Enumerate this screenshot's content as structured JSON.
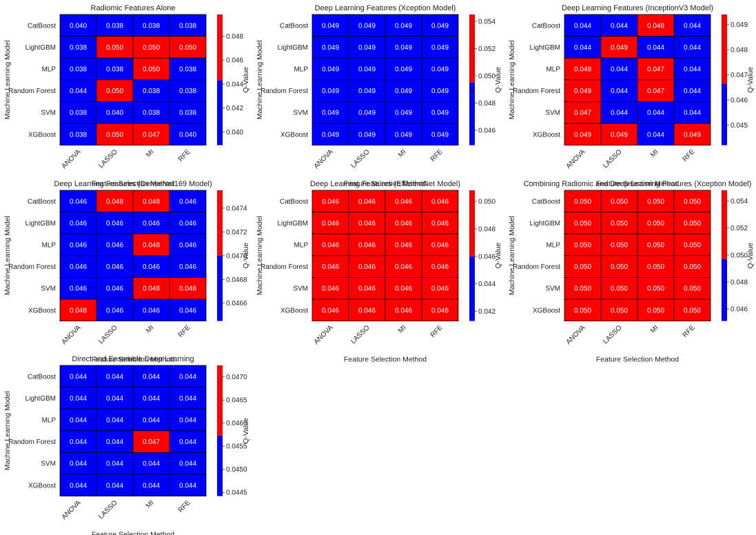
{
  "colors": {
    "low": "#0000ff",
    "high": "#ff0000",
    "grid": "#000000"
  },
  "chart_data": [
    {
      "type": "heatmap",
      "title": "Radiomic Features Alone",
      "xlabel": "Feature Selection Method",
      "ylabel": "Machine Learning Model",
      "x_categories": [
        "ANOVA",
        "LASSO",
        "MI",
        "RFE"
      ],
      "y_categories": [
        "CatBoost",
        "LightGBM",
        "MLP",
        "Random Forest",
        "SVM",
        "XGBoost"
      ],
      "values": [
        [
          0.04,
          0.038,
          0.038,
          0.038
        ],
        [
          0.038,
          0.05,
          0.05,
          0.05
        ],
        [
          0.038,
          0.038,
          0.05,
          0.038
        ],
        [
          0.044,
          0.05,
          0.038,
          0.038
        ],
        [
          0.038,
          0.04,
          0.038,
          0.038
        ],
        [
          0.038,
          0.05,
          0.047,
          0.04
        ]
      ],
      "labels": [
        [
          "0.040",
          "0.038",
          "0.038",
          "0.038"
        ],
        [
          "0.038",
          "0.050",
          "0.050",
          "0.050"
        ],
        [
          "0.038",
          "0.038",
          "0.050",
          "0.038"
        ],
        [
          "0.044",
          "0.050",
          "0.038",
          "0.038"
        ],
        [
          "0.038",
          "0.040",
          "0.038",
          "0.038"
        ],
        [
          "0.038",
          "0.050",
          "0.047",
          "0.040"
        ]
      ],
      "colorbar": {
        "label": "Q-Value",
        "vmin": 0.0389,
        "vmax": 0.0498,
        "threshold": 0.0443,
        "ticks": [
          "0.040",
          "0.042",
          "0.044",
          "0.046",
          "0.048"
        ]
      }
    },
    {
      "type": "heatmap",
      "title": "Deep Learning Features (Xception Model)",
      "xlabel": "Feature Selection Method",
      "ylabel": "Machine Learning Model",
      "x_categories": [
        "ANOVA",
        "LASSO",
        "MI",
        "RFE"
      ],
      "y_categories": [
        "CatBoost",
        "LightGBM",
        "MLP",
        "Random Forest",
        "SVM",
        "XGBoost"
      ],
      "values": [
        [
          0.049,
          0.049,
          0.049,
          0.049
        ],
        [
          0.049,
          0.049,
          0.049,
          0.049
        ],
        [
          0.049,
          0.049,
          0.049,
          0.049
        ],
        [
          0.049,
          0.049,
          0.049,
          0.049
        ],
        [
          0.049,
          0.049,
          0.049,
          0.049
        ],
        [
          0.049,
          0.049,
          0.049,
          0.049
        ]
      ],
      "labels": [
        [
          "0.049",
          "0.049",
          "0.049",
          "0.049"
        ],
        [
          "0.049",
          "0.049",
          "0.049",
          "0.049"
        ],
        [
          "0.049",
          "0.049",
          "0.049",
          "0.049"
        ],
        [
          "0.049",
          "0.049",
          "0.049",
          "0.049"
        ],
        [
          "0.049",
          "0.049",
          "0.049",
          "0.049"
        ],
        [
          "0.049",
          "0.049",
          "0.049",
          "0.049"
        ]
      ],
      "colorbar": {
        "label": "Q-Value",
        "vmin": 0.0449,
        "vmax": 0.0545,
        "threshold": 0.0495,
        "ticks": [
          "0.046",
          "0.048",
          "0.050",
          "0.052",
          "0.054"
        ]
      }
    },
    {
      "type": "heatmap",
      "title": "Deep Learning Features (InceptionV3 Model)",
      "xlabel": "Feature Selection Method",
      "ylabel": "Machine Learning Model",
      "x_categories": [
        "ANOVA",
        "LASSO",
        "MI",
        "RFE"
      ],
      "y_categories": [
        "CatBoost",
        "LightGBM",
        "MLP",
        "Random Forest",
        "SVM",
        "XGBoost"
      ],
      "values": [
        [
          0.044,
          0.044,
          0.048,
          0.044
        ],
        [
          0.044,
          0.049,
          0.044,
          0.044
        ],
        [
          0.048,
          0.044,
          0.047,
          0.044
        ],
        [
          0.049,
          0.044,
          0.047,
          0.044
        ],
        [
          0.047,
          0.044,
          0.044,
          0.044
        ],
        [
          0.049,
          0.049,
          0.044,
          0.049
        ]
      ],
      "labels": [
        [
          "0.044",
          "0.044",
          "0.048",
          "0.044"
        ],
        [
          "0.044",
          "0.049",
          "0.044",
          "0.044"
        ],
        [
          "0.048",
          "0.044",
          "0.047",
          "0.044"
        ],
        [
          "0.049",
          "0.044",
          "0.047",
          "0.044"
        ],
        [
          "0.047",
          "0.044",
          "0.044",
          "0.044"
        ],
        [
          "0.049",
          "0.049",
          "0.044",
          "0.049"
        ]
      ],
      "colorbar": {
        "label": "Q-Value",
        "vmin": 0.0442,
        "vmax": 0.0494,
        "threshold": 0.04665,
        "ticks": [
          "0.045",
          "0.046",
          "0.047",
          "0.048",
          "0.049"
        ]
      }
    },
    {
      "type": "heatmap",
      "title": "Deep Learning Features (DenseNet169 Model)",
      "xlabel": "Feature Selection Method",
      "ylabel": "Machine Learning Model",
      "x_categories": [
        "ANOVA",
        "LASSO",
        "MI",
        "RFE"
      ],
      "y_categories": [
        "CatBoost",
        "LightGBM",
        "MLP",
        "Random Forest",
        "SVM",
        "XGBoost"
      ],
      "values": [
        [
          0.046,
          0.048,
          0.048,
          0.046
        ],
        [
          0.046,
          0.046,
          0.046,
          0.046
        ],
        [
          0.046,
          0.046,
          0.048,
          0.046
        ],
        [
          0.046,
          0.046,
          0.046,
          0.046
        ],
        [
          0.046,
          0.046,
          0.048,
          0.048
        ],
        [
          0.048,
          0.046,
          0.046,
          0.046
        ]
      ],
      "labels": [
        [
          "0.046",
          "0.048",
          "0.048",
          "0.046"
        ],
        [
          "0.046",
          "0.046",
          "0.046",
          "0.046"
        ],
        [
          "0.046",
          "0.046",
          "0.048",
          "0.046"
        ],
        [
          "0.046",
          "0.046",
          "0.046",
          "0.046"
        ],
        [
          "0.046",
          "0.046",
          "0.048",
          "0.048"
        ],
        [
          "0.048",
          "0.046",
          "0.046",
          "0.046"
        ]
      ],
      "colorbar": {
        "label": "Q-Value",
        "vmin": 0.04645,
        "vmax": 0.04755,
        "threshold": 0.047,
        "ticks": [
          "0.0466",
          "0.0468",
          "0.0470",
          "0.0472",
          "0.0474"
        ]
      }
    },
    {
      "type": "heatmap",
      "title": "Deep Learning Features (EfficientNet Model)",
      "xlabel": "Feature Selection Method",
      "ylabel": "Machine Learning Model",
      "x_categories": [
        "ANOVA",
        "LASSO",
        "MI",
        "RFE"
      ],
      "y_categories": [
        "CatBoost",
        "LightGBM",
        "MLP",
        "Random Forest",
        "SVM",
        "XGBoost"
      ],
      "values": [
        [
          0.046,
          0.046,
          0.046,
          0.046
        ],
        [
          0.046,
          0.046,
          0.046,
          0.046
        ],
        [
          0.046,
          0.046,
          0.046,
          0.046
        ],
        [
          0.046,
          0.046,
          0.046,
          0.046
        ],
        [
          0.046,
          0.046,
          0.046,
          0.046
        ],
        [
          0.046,
          0.046,
          0.046,
          0.046
        ]
      ],
      "labels": [
        [
          "0.046",
          "0.046",
          "0.046",
          "0.046"
        ],
        [
          "0.046",
          "0.046",
          "0.046",
          "0.046"
        ],
        [
          "0.046",
          "0.046",
          "0.046",
          "0.046"
        ],
        [
          "0.046",
          "0.046",
          "0.046",
          "0.046"
        ],
        [
          "0.046",
          "0.046",
          "0.046",
          "0.046"
        ],
        [
          "0.046",
          "0.046",
          "0.046",
          "0.046"
        ]
      ],
      "colorbar": {
        "label": "Q-Value",
        "vmin": 0.0413,
        "vmax": 0.0508,
        "threshold": 0.046,
        "ticks": [
          "0.042",
          "0.044",
          "0.046",
          "0.048",
          "0.050"
        ]
      }
    },
    {
      "type": "heatmap",
      "title": "Combining Radiomic and Deep Learning Features (Xception Model)",
      "xlabel": "Feature Selection Method",
      "ylabel": "Machine Learning Model",
      "x_categories": [
        "ANOVA",
        "LASSO",
        "MI",
        "RFE"
      ],
      "y_categories": [
        "CatBoost",
        "LightGBM",
        "MLP",
        "Random Forest",
        "SVM",
        "XGBoost"
      ],
      "values": [
        [
          0.05,
          0.05,
          0.05,
          0.05
        ],
        [
          0.05,
          0.05,
          0.05,
          0.05
        ],
        [
          0.05,
          0.05,
          0.05,
          0.05
        ],
        [
          0.05,
          0.05,
          0.05,
          0.05
        ],
        [
          0.05,
          0.05,
          0.05,
          0.05
        ],
        [
          0.05,
          0.05,
          0.05,
          0.05
        ]
      ],
      "labels": [
        [
          "0.050",
          "0.050",
          "0.050",
          "0.050"
        ],
        [
          "0.050",
          "0.050",
          "0.050",
          "0.050"
        ],
        [
          "0.050",
          "0.050",
          "0.050",
          "0.050"
        ],
        [
          "0.050",
          "0.050",
          "0.050",
          "0.050"
        ],
        [
          "0.050",
          "0.050",
          "0.050",
          "0.050"
        ],
        [
          "0.050",
          "0.050",
          "0.050",
          "0.050"
        ]
      ],
      "colorbar": {
        "label": "Q-Value",
        "vmin": 0.0451,
        "vmax": 0.0548,
        "threshold": 0.0497,
        "ticks": [
          "0.046",
          "0.048",
          "0.050",
          "0.052",
          "0.054"
        ]
      }
    },
    {
      "type": "heatmap",
      "title": "Direct and Ensemble Deep Learning",
      "xlabel": "Feature Selection Method",
      "ylabel": "Machine Learning Model",
      "x_categories": [
        "ANOVA",
        "LASSO",
        "MI",
        "RFE"
      ],
      "y_categories": [
        "CatBoost",
        "LightGBM",
        "MLP",
        "Random Forest",
        "SVM",
        "XGBoost"
      ],
      "values": [
        [
          0.044,
          0.044,
          0.044,
          0.044
        ],
        [
          0.044,
          0.044,
          0.044,
          0.044
        ],
        [
          0.044,
          0.044,
          0.044,
          0.044
        ],
        [
          0.044,
          0.044,
          0.047,
          0.044
        ],
        [
          0.044,
          0.044,
          0.044,
          0.044
        ],
        [
          0.044,
          0.044,
          0.044,
          0.044
        ]
      ],
      "labels": [
        [
          "0.044",
          "0.044",
          "0.044",
          "0.044"
        ],
        [
          "0.044",
          "0.044",
          "0.044",
          "0.044"
        ],
        [
          "0.044",
          "0.044",
          "0.044",
          "0.044"
        ],
        [
          "0.044",
          "0.044",
          "0.047",
          "0.044"
        ],
        [
          "0.044",
          "0.044",
          "0.044",
          "0.044"
        ],
        [
          "0.044",
          "0.044",
          "0.044",
          "0.044"
        ]
      ],
      "colorbar": {
        "label": "Q-Value",
        "vmin": 0.04442,
        "vmax": 0.04725,
        "threshold": 0.04573,
        "ticks": [
          "0.0445",
          "0.0450",
          "0.0455",
          "0.0460",
          "0.0465",
          "0.0470"
        ]
      }
    }
  ]
}
